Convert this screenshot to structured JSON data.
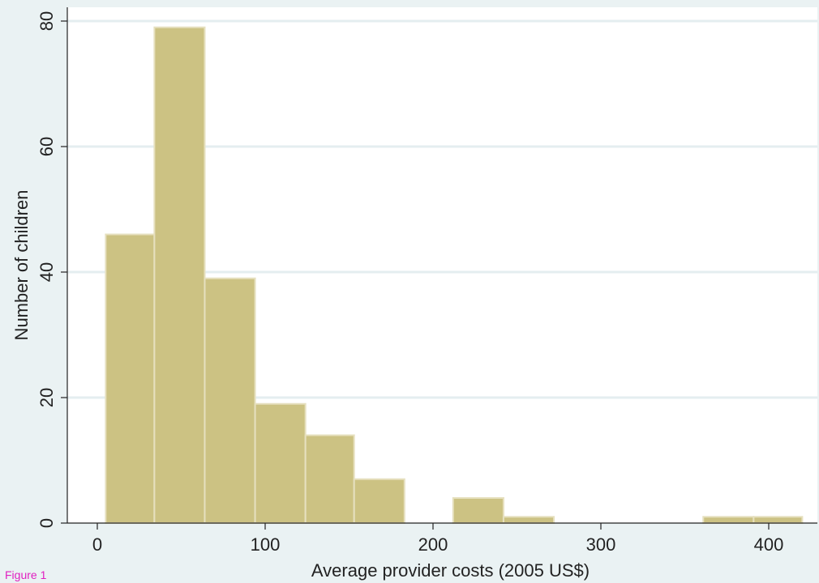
{
  "caption": "Figure 1",
  "chart_data": {
    "type": "bar",
    "subtype": "histogram",
    "xlabel": "Average provider costs (2005 US$)",
    "ylabel": "Number of children",
    "xlim": [
      0,
      420
    ],
    "ylim": [
      0,
      80
    ],
    "xticks": [
      0,
      100,
      200,
      300,
      400
    ],
    "yticks": [
      0,
      20,
      40,
      60,
      80
    ],
    "grid": "horizontal",
    "bar_color": "#ccc283",
    "bins": [
      {
        "x0": 5,
        "x1": 34,
        "value": 46
      },
      {
        "x0": 34,
        "x1": 64,
        "value": 79
      },
      {
        "x0": 64,
        "x1": 94,
        "value": 39
      },
      {
        "x0": 94,
        "x1": 124,
        "value": 19
      },
      {
        "x0": 124,
        "x1": 153,
        "value": 14
      },
      {
        "x0": 153,
        "x1": 183,
        "value": 7
      },
      {
        "x0": 183,
        "x1": 212,
        "value": 0
      },
      {
        "x0": 212,
        "x1": 242,
        "value": 4
      },
      {
        "x0": 242,
        "x1": 272,
        "value": 1
      },
      {
        "x0": 272,
        "x1": 302,
        "value": 0
      },
      {
        "x0": 302,
        "x1": 332,
        "value": 0
      },
      {
        "x0": 332,
        "x1": 361,
        "value": 0
      },
      {
        "x0": 361,
        "x1": 391,
        "value": 1
      },
      {
        "x0": 391,
        "x1": 420,
        "value": 1
      }
    ]
  }
}
